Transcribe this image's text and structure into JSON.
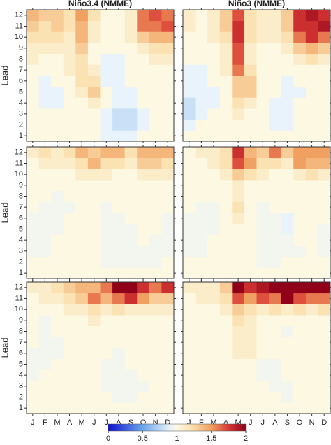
{
  "chart_data": [
    {
      "type": "heatmap",
      "title": "Niño3.4 (NMME)",
      "ylabel": "Lead",
      "y": [
        1,
        2,
        3,
        4,
        5,
        6,
        7,
        8,
        9,
        10,
        11,
        12
      ],
      "values": [
        [
          1.0,
          1.0,
          1.0,
          1.0,
          1.0,
          1.0,
          0.9,
          0.9,
          0.9,
          1.0,
          1.0,
          1.0
        ],
        [
          1.0,
          1.0,
          1.0,
          1.0,
          1.0,
          1.0,
          0.9,
          0.8,
          0.8,
          0.9,
          1.0,
          1.0
        ],
        [
          1.0,
          1.0,
          1.0,
          1.0,
          1.0,
          1.0,
          0.9,
          0.8,
          0.8,
          0.9,
          1.0,
          1.0
        ],
        [
          1.0,
          0.9,
          0.9,
          1.0,
          1.0,
          1.1,
          1.0,
          0.9,
          0.9,
          1.0,
          1.0,
          1.0
        ],
        [
          1.0,
          0.9,
          0.9,
          1.0,
          1.1,
          1.3,
          1.0,
          0.9,
          0.9,
          1.0,
          1.0,
          1.0
        ],
        [
          1.0,
          0.9,
          1.0,
          1.0,
          1.2,
          1.2,
          0.9,
          0.9,
          1.0,
          1.0,
          1.0,
          1.0
        ],
        [
          1.0,
          1.0,
          1.0,
          1.1,
          1.2,
          1.1,
          0.9,
          0.9,
          1.0,
          1.0,
          1.0,
          1.0
        ],
        [
          1.1,
          1.0,
          1.0,
          1.1,
          1.2,
          1.0,
          0.9,
          0.9,
          1.0,
          1.0,
          1.1,
          1.1
        ],
        [
          1.1,
          1.1,
          1.1,
          1.1,
          1.3,
          1.0,
          1.0,
          1.0,
          1.0,
          1.1,
          1.2,
          1.2
        ],
        [
          1.2,
          1.2,
          1.2,
          1.1,
          1.4,
          1.1,
          1.0,
          1.0,
          1.1,
          1.3,
          1.4,
          1.4
        ],
        [
          1.3,
          1.2,
          1.3,
          1.2,
          1.4,
          1.1,
          1.0,
          1.0,
          1.1,
          1.6,
          1.6,
          1.7
        ],
        [
          1.4,
          1.3,
          1.3,
          1.2,
          1.5,
          1.2,
          1.0,
          1.0,
          1.1,
          1.6,
          1.7,
          1.6
        ]
      ]
    },
    {
      "type": "heatmap",
      "title": "Niño3 (NMME)",
      "values": [
        [
          1.0,
          1.0,
          1.0,
          1.0,
          1.0,
          1.0,
          1.0,
          1.0,
          1.0,
          1.0,
          1.0,
          1.0
        ],
        [
          0.9,
          1.0,
          1.0,
          1.0,
          1.0,
          1.0,
          1.0,
          0.9,
          0.9,
          1.0,
          1.0,
          1.0
        ],
        [
          0.8,
          0.9,
          1.0,
          1.0,
          1.1,
          1.0,
          1.0,
          0.9,
          0.9,
          1.0,
          1.0,
          1.0
        ],
        [
          0.8,
          0.9,
          0.9,
          1.0,
          1.2,
          1.1,
          1.0,
          0.9,
          0.9,
          1.0,
          1.0,
          1.0
        ],
        [
          0.9,
          0.9,
          0.9,
          1.0,
          1.3,
          1.3,
          1.0,
          1.0,
          0.9,
          0.9,
          1.0,
          1.0
        ],
        [
          0.9,
          0.9,
          1.0,
          1.0,
          1.3,
          1.3,
          1.0,
          1.0,
          0.9,
          1.0,
          1.0,
          1.0
        ],
        [
          0.9,
          0.9,
          1.0,
          1.1,
          1.6,
          1.2,
          1.0,
          1.0,
          1.0,
          1.0,
          1.0,
          1.0
        ],
        [
          1.0,
          1.0,
          1.0,
          1.1,
          1.7,
          1.1,
          1.0,
          1.0,
          1.0,
          1.1,
          1.2,
          1.1
        ],
        [
          1.0,
          1.0,
          1.0,
          1.1,
          1.7,
          1.1,
          1.0,
          1.0,
          1.1,
          1.3,
          1.4,
          1.3
        ],
        [
          1.0,
          1.0,
          1.1,
          1.2,
          1.8,
          1.2,
          1.1,
          1.1,
          1.2,
          1.6,
          1.8,
          1.6
        ],
        [
          1.1,
          1.0,
          1.1,
          1.3,
          1.8,
          1.2,
          1.1,
          1.1,
          1.3,
          1.8,
          1.8,
          1.9
        ],
        [
          1.1,
          1.0,
          1.1,
          1.3,
          1.7,
          1.2,
          1.1,
          1.1,
          1.3,
          1.8,
          1.9,
          1.8
        ]
      ]
    },
    {
      "type": "heatmap",
      "ylabel": "Lead",
      "y": [
        1,
        2,
        3,
        4,
        5,
        6,
        7,
        8,
        9,
        10,
        11,
        12
      ],
      "values": [
        [
          1.0,
          1.0,
          1.0,
          1.0,
          1.0,
          1.0,
          1.0,
          1.0,
          1.0,
          1.0,
          1.0,
          1.0
        ],
        [
          1.0,
          1.0,
          1.0,
          1.0,
          1.0,
          1.0,
          0.95,
          0.95,
          0.95,
          0.95,
          0.95,
          1.0
        ],
        [
          0.95,
          0.95,
          1.0,
          1.0,
          1.0,
          1.0,
          0.95,
          0.95,
          0.95,
          0.95,
          0.95,
          0.95
        ],
        [
          0.95,
          0.95,
          1.0,
          1.0,
          1.0,
          1.0,
          0.95,
          0.95,
          0.95,
          1.0,
          0.95,
          0.95
        ],
        [
          0.95,
          0.95,
          0.95,
          1.0,
          1.0,
          1.0,
          0.95,
          0.95,
          0.95,
          1.0,
          1.0,
          0.95
        ],
        [
          0.95,
          0.95,
          0.95,
          1.0,
          1.0,
          1.0,
          0.95,
          0.95,
          1.0,
          1.0,
          1.0,
          0.95
        ],
        [
          1.0,
          0.95,
          0.95,
          0.95,
          1.0,
          1.0,
          0.95,
          1.0,
          1.0,
          1.0,
          1.0,
          1.0
        ],
        [
          1.0,
          1.0,
          0.95,
          1.0,
          1.0,
          1.0,
          1.0,
          1.0,
          1.0,
          1.0,
          1.0,
          1.0
        ],
        [
          1.0,
          1.0,
          1.0,
          1.0,
          1.0,
          1.0,
          1.0,
          1.0,
          1.0,
          1.0,
          1.0,
          1.0
        ],
        [
          1.0,
          1.0,
          1.0,
          1.0,
          1.1,
          1.1,
          1.1,
          1.0,
          1.0,
          1.1,
          1.1,
          1.1
        ],
        [
          1.0,
          1.1,
          1.1,
          1.1,
          1.2,
          1.4,
          1.2,
          1.2,
          1.1,
          1.3,
          1.3,
          1.2
        ],
        [
          1.1,
          1.2,
          1.1,
          1.2,
          1.4,
          1.3,
          1.4,
          1.4,
          1.2,
          1.4,
          1.4,
          1.4
        ]
      ]
    },
    {
      "type": "heatmap",
      "values": [
        [
          1.0,
          1.0,
          1.0,
          1.0,
          1.0,
          1.0,
          1.0,
          1.0,
          1.0,
          1.0,
          1.0,
          1.0
        ],
        [
          1.0,
          1.0,
          1.0,
          1.0,
          1.0,
          1.0,
          0.95,
          0.95,
          1.0,
          1.0,
          1.0,
          1.0
        ],
        [
          0.95,
          0.95,
          1.0,
          1.0,
          1.0,
          1.0,
          0.95,
          0.95,
          0.95,
          0.95,
          1.0,
          0.95
        ],
        [
          0.95,
          0.95,
          1.0,
          1.0,
          1.0,
          1.0,
          0.95,
          0.95,
          0.95,
          1.0,
          1.0,
          0.95
        ],
        [
          0.95,
          0.95,
          0.95,
          1.0,
          1.0,
          1.0,
          0.95,
          0.95,
          0.9,
          1.0,
          1.0,
          0.95
        ],
        [
          0.95,
          0.95,
          0.95,
          1.0,
          1.1,
          1.0,
          0.95,
          0.95,
          0.9,
          1.0,
          1.0,
          1.0
        ],
        [
          1.0,
          0.95,
          0.95,
          1.0,
          1.2,
          1.0,
          0.95,
          1.0,
          1.0,
          1.0,
          1.0,
          1.0
        ],
        [
          1.0,
          1.0,
          1.0,
          1.0,
          1.1,
          1.0,
          1.0,
          1.0,
          1.0,
          1.0,
          1.0,
          1.0
        ],
        [
          1.0,
          1.0,
          1.0,
          1.0,
          1.1,
          1.0,
          1.0,
          1.0,
          1.0,
          1.0,
          1.0,
          1.0
        ],
        [
          1.0,
          1.0,
          1.0,
          1.1,
          1.3,
          1.2,
          1.1,
          1.0,
          1.0,
          1.1,
          1.2,
          1.1
        ],
        [
          1.0,
          1.0,
          1.1,
          1.2,
          1.7,
          1.5,
          1.2,
          1.2,
          1.1,
          1.5,
          1.4,
          1.4
        ],
        [
          1.0,
          1.1,
          1.1,
          1.2,
          1.8,
          1.4,
          1.3,
          1.6,
          1.3,
          1.5,
          1.5,
          1.5
        ]
      ]
    },
    {
      "type": "heatmap",
      "ylabel": "Lead",
      "y": [
        1,
        2,
        3,
        4,
        5,
        6,
        7,
        8,
        9,
        10,
        11,
        12
      ],
      "categories": [
        "J",
        "F",
        "M",
        "A",
        "M",
        "J",
        "J",
        "A",
        "S",
        "O",
        "N",
        "D"
      ],
      "values": [
        [
          1.0,
          1.0,
          1.0,
          1.0,
          1.0,
          1.0,
          1.0,
          1.0,
          1.0,
          1.0,
          1.0,
          1.0
        ],
        [
          1.0,
          1.0,
          1.0,
          1.0,
          1.0,
          1.0,
          1.0,
          0.95,
          0.95,
          1.0,
          1.0,
          1.0
        ],
        [
          1.0,
          1.0,
          1.0,
          1.0,
          1.0,
          1.0,
          0.95,
          0.95,
          0.95,
          0.95,
          1.0,
          1.0
        ],
        [
          0.95,
          1.0,
          1.0,
          1.0,
          1.0,
          1.0,
          0.95,
          0.95,
          0.95,
          1.0,
          1.0,
          1.0
        ],
        [
          0.95,
          0.95,
          1.0,
          1.0,
          1.0,
          1.0,
          0.95,
          0.95,
          1.0,
          1.0,
          1.0,
          1.0
        ],
        [
          0.95,
          0.95,
          0.95,
          1.0,
          1.0,
          1.0,
          1.0,
          0.95,
          1.0,
          1.0,
          1.0,
          1.0
        ],
        [
          1.0,
          0.95,
          0.95,
          1.0,
          1.0,
          1.0,
          1.0,
          1.0,
          1.0,
          1.0,
          1.0,
          1.0
        ],
        [
          1.0,
          0.95,
          1.0,
          1.0,
          1.0,
          1.0,
          1.0,
          1.0,
          1.0,
          1.0,
          1.0,
          1.0
        ],
        [
          1.0,
          0.95,
          1.0,
          1.0,
          1.0,
          1.1,
          1.0,
          1.0,
          1.0,
          1.0,
          1.0,
          1.0
        ],
        [
          1.0,
          1.0,
          1.0,
          1.1,
          1.1,
          1.2,
          1.1,
          1.2,
          1.1,
          1.1,
          1.1,
          1.1
        ],
        [
          1.0,
          1.1,
          1.1,
          1.2,
          1.3,
          1.6,
          1.4,
          1.6,
          1.8,
          1.5,
          1.3,
          1.3
        ],
        [
          1.1,
          1.1,
          1.2,
          1.3,
          1.4,
          1.4,
          1.6,
          2.0,
          2.0,
          1.8,
          1.6,
          1.8
        ]
      ]
    },
    {
      "type": "heatmap",
      "categories": [
        "J",
        "F",
        "M",
        "A",
        "M",
        "J",
        "J",
        "A",
        "S",
        "O",
        "N",
        "D"
      ],
      "values": [
        [
          1.0,
          1.0,
          1.0,
          1.0,
          1.0,
          1.0,
          1.0,
          1.0,
          1.0,
          1.0,
          1.0,
          1.0
        ],
        [
          1.0,
          1.0,
          1.0,
          1.0,
          1.0,
          1.0,
          1.0,
          1.0,
          0.95,
          1.0,
          1.0,
          1.0
        ],
        [
          1.0,
          1.0,
          1.0,
          1.0,
          1.0,
          1.0,
          1.0,
          0.95,
          0.95,
          1.0,
          1.0,
          1.0
        ],
        [
          1.0,
          1.0,
          1.0,
          1.0,
          1.0,
          1.0,
          0.95,
          0.95,
          1.0,
          1.0,
          1.0,
          1.0
        ],
        [
          1.0,
          1.0,
          1.0,
          1.0,
          1.0,
          1.0,
          0.95,
          0.95,
          1.0,
          1.0,
          1.0,
          1.0
        ],
        [
          1.0,
          1.0,
          1.0,
          1.0,
          1.1,
          1.1,
          1.0,
          1.0,
          1.0,
          1.0,
          1.0,
          1.0
        ],
        [
          1.0,
          1.0,
          1.0,
          1.0,
          1.1,
          1.1,
          1.0,
          1.0,
          1.0,
          1.0,
          1.0,
          1.0
        ],
        [
          1.0,
          1.0,
          1.0,
          1.0,
          1.1,
          1.1,
          1.0,
          1.0,
          0.95,
          1.0,
          1.0,
          1.0
        ],
        [
          1.0,
          1.0,
          1.0,
          1.0,
          1.2,
          1.1,
          1.0,
          1.0,
          1.0,
          1.0,
          1.0,
          1.0
        ],
        [
          1.0,
          1.0,
          1.0,
          1.1,
          1.3,
          1.2,
          1.1,
          1.2,
          1.1,
          1.2,
          1.1,
          1.2
        ],
        [
          1.0,
          1.1,
          1.1,
          1.2,
          1.7,
          1.5,
          1.7,
          1.6,
          2.0,
          1.7,
          1.6,
          1.6
        ],
        [
          1.1,
          1.1,
          1.1,
          1.3,
          2.0,
          1.8,
          1.9,
          2.0,
          2.0,
          2.0,
          2.0,
          2.0
        ]
      ]
    }
  ],
  "colorbar": {
    "lim": [
      0,
      2
    ],
    "ticks": [
      0,
      0.5,
      1,
      1.5,
      2
    ]
  }
}
